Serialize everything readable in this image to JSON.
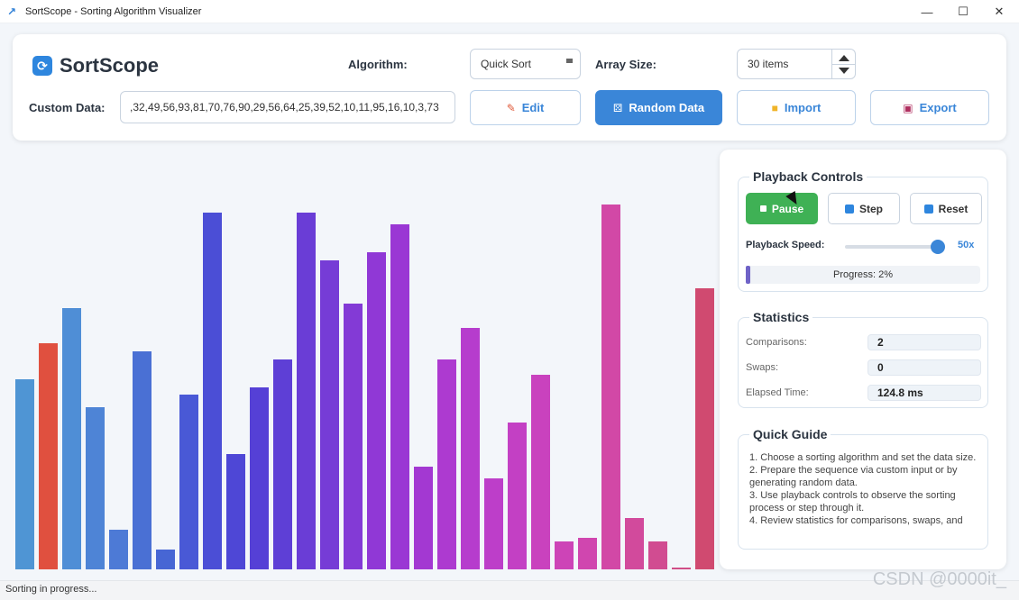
{
  "window": {
    "title": "SortScope - Sorting Algorithm Visualizer",
    "icon": "chart-trend-icon"
  },
  "header": {
    "logo_text": "SortScope",
    "algorithm_label": "Algorithm:",
    "algorithm_value": "Quick Sort",
    "array_size_label": "Array Size:",
    "array_size_value": "30 items",
    "custom_data_label": "Custom Data:",
    "custom_data_value": ",32,49,56,93,81,70,76,90,29,56,64,25,39,52,10,11,95,16,10,3,73",
    "edit_label": "Edit",
    "random_label": "Random Data",
    "import_label": "Import",
    "export_label": "Export"
  },
  "bars": {
    "max": 100,
    "values": [
      48,
      57,
      66,
      41,
      10,
      55,
      5,
      44,
      90,
      29,
      46,
      53,
      90,
      78,
      67,
      80,
      87,
      26,
      53,
      61,
      23,
      37,
      49,
      7,
      8,
      92,
      13,
      7,
      0.5,
      71
    ],
    "colors": [
      "#4f95d4",
      "#e0503f",
      "#4f8ed6",
      "#4e84d6",
      "#4d7ad6",
      "#4a70d4",
      "#4766d4",
      "#4959d6",
      "#4b4ed6",
      "#4e47d6",
      "#5540d6",
      "#5e3fd6",
      "#6a3dd6",
      "#763cd6",
      "#833ad6",
      "#9038d6",
      "#9a37d4",
      "#a338d2",
      "#ad3ad0",
      "#b63ccd",
      "#bd3ec9",
      "#c340c4",
      "#c942be",
      "#cd44b7",
      "#d046af",
      "#d248a6",
      "#d24a9c",
      "#d14c91",
      "#d04e86",
      "#d04a70"
    ]
  },
  "playback": {
    "title": "Playback Controls",
    "pause_label": "Pause",
    "step_label": "Step",
    "reset_label": "Reset",
    "speed_label": "Playback Speed:",
    "speed_value": "50x",
    "progress": 0.02,
    "progress_text": "Progress: 2%"
  },
  "statistics": {
    "title": "Statistics",
    "comparisons_label": "Comparisons:",
    "comparisons_value": "2",
    "swaps_label": "Swaps:",
    "swaps_value": "0",
    "elapsed_label": "Elapsed Time:",
    "elapsed_value": "124.8 ms"
  },
  "guide": {
    "title": "Quick Guide",
    "lines": [
      "1. Choose a sorting algorithm and set the data size.",
      "2. Prepare the sequence via custom input or by generating random data.",
      "3. Use playback controls to observe the sorting process or step through it.",
      "4. Review statistics for comparisons, swaps, and"
    ]
  },
  "status": {
    "text": "Sorting in progress..."
  },
  "watermark": "CSDN @0000it_"
}
